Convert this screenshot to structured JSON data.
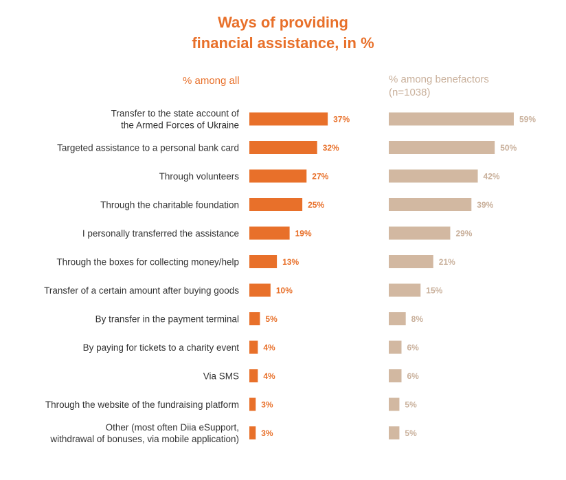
{
  "colors": {
    "accent": "#e8702a",
    "secondary": "#d2b8a1",
    "secondary_text": "#c9b09b",
    "text": "#333333"
  },
  "chart_data": {
    "type": "bar",
    "orientation": "horizontal",
    "title_lines": [
      "Ways of providing",
      "financial assistance, in %"
    ],
    "categories": [
      [
        "Transfer to the state account of",
        "the Armed Forces of Ukraine"
      ],
      [
        "Targeted assistance to a personal bank card"
      ],
      [
        "Through volunteers"
      ],
      [
        "Through the charitable foundation"
      ],
      [
        "I personally transferred the assistance"
      ],
      [
        "Through the boxes for collecting money/help"
      ],
      [
        "Transfer of a certain amount after buying goods"
      ],
      [
        "By transfer in the payment terminal"
      ],
      [
        "By paying for tickets to a charity event"
      ],
      [
        "Via SMS"
      ],
      [
        "Through the website of the fundraising platform"
      ],
      [
        "Other (most often Diia eSupport,",
        "withdrawal of bonuses, via mobile application)"
      ]
    ],
    "series": [
      {
        "name": "% among all",
        "header_lines": [
          "% among all"
        ],
        "values": [
          37,
          32,
          27,
          25,
          19,
          13,
          10,
          5,
          4,
          4,
          3,
          3
        ]
      },
      {
        "name": "% among benefactors (n=1038)",
        "header_lines": [
          "% among benefactors",
          "(n=1038)"
        ],
        "values": [
          59,
          50,
          42,
          39,
          29,
          21,
          15,
          8,
          6,
          6,
          5,
          5
        ]
      }
    ],
    "value_suffix": "%",
    "xlim": [
      0,
      59
    ]
  }
}
